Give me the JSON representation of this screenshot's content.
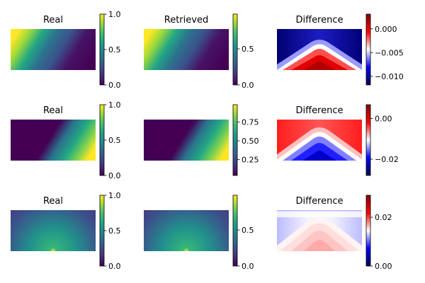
{
  "chart_data": [
    {
      "type": "heatmap",
      "title": "Real",
      "pattern": "diagonal",
      "flip": false,
      "colormap": "viridis",
      "ticks": [
        "0.0",
        "0.5",
        "1.0"
      ],
      "tick_values": [
        0,
        0.5,
        1.0
      ],
      "vmin": 0,
      "vmax": 1.0
    },
    {
      "type": "heatmap",
      "title": "Retrieved",
      "pattern": "diagonal",
      "flip": false,
      "colormap": "viridis",
      "ticks": [
        "0.0",
        "0.5"
      ],
      "tick_values": [
        0,
        0.5
      ],
      "vmin": 0,
      "vmax": 0.98
    },
    {
      "type": "heatmap",
      "title": "Difference",
      "pattern": "arch",
      "colormap": "seismic",
      "ticks": [
        "−0.010",
        "−0.005",
        "0.000"
      ],
      "tick_values": [
        -0.01,
        -0.005,
        0.0
      ],
      "vmin": -0.0118,
      "vmax": 0.0031
    },
    {
      "type": "heatmap",
      "title": "Real",
      "pattern": "diagonal",
      "flip": true,
      "colormap": "viridis",
      "ticks": [
        "0.0",
        "0.5",
        "1.0"
      ],
      "tick_values": [
        0,
        0.5,
        1.0
      ],
      "vmin": 0,
      "vmax": 1.0
    },
    {
      "type": "heatmap",
      "title": "",
      "pattern": "diagonal",
      "flip": true,
      "colormap": "viridis",
      "ticks": [
        "0.25",
        "0.50",
        "0.75"
      ],
      "tick_values": [
        0.25,
        0.5,
        0.75
      ],
      "vmin": 0.04,
      "vmax": 0.98
    },
    {
      "type": "heatmap",
      "title": "Difference",
      "pattern": "arch_inverted",
      "colormap": "seismic",
      "ticks": [
        "−0.02",
        "0.00"
      ],
      "tick_values": [
        -0.02,
        0.0
      ],
      "vmin": -0.028,
      "vmax": 0.0068
    },
    {
      "type": "heatmap",
      "title": "Real",
      "pattern": "radial",
      "colormap": "viridis",
      "ticks": [
        "0.0",
        "0.5",
        "1.0"
      ],
      "tick_values": [
        0,
        0.5,
        1.0
      ],
      "vmin": 0,
      "vmax": 1.0
    },
    {
      "type": "heatmap",
      "title": "",
      "pattern": "radial",
      "colormap": "viridis",
      "ticks": [
        "0.0",
        "0.5"
      ],
      "tick_values": [
        0,
        0.5
      ],
      "vmin": 0,
      "vmax": 0.98
    },
    {
      "type": "heatmap",
      "title": "Difference",
      "pattern": "arch_light",
      "colormap": "seismic",
      "ticks": [
        "0.00",
        "0.02"
      ],
      "tick_values": [
        0.0,
        0.02
      ],
      "vmin": 0.0,
      "vmax": 0.029
    }
  ]
}
